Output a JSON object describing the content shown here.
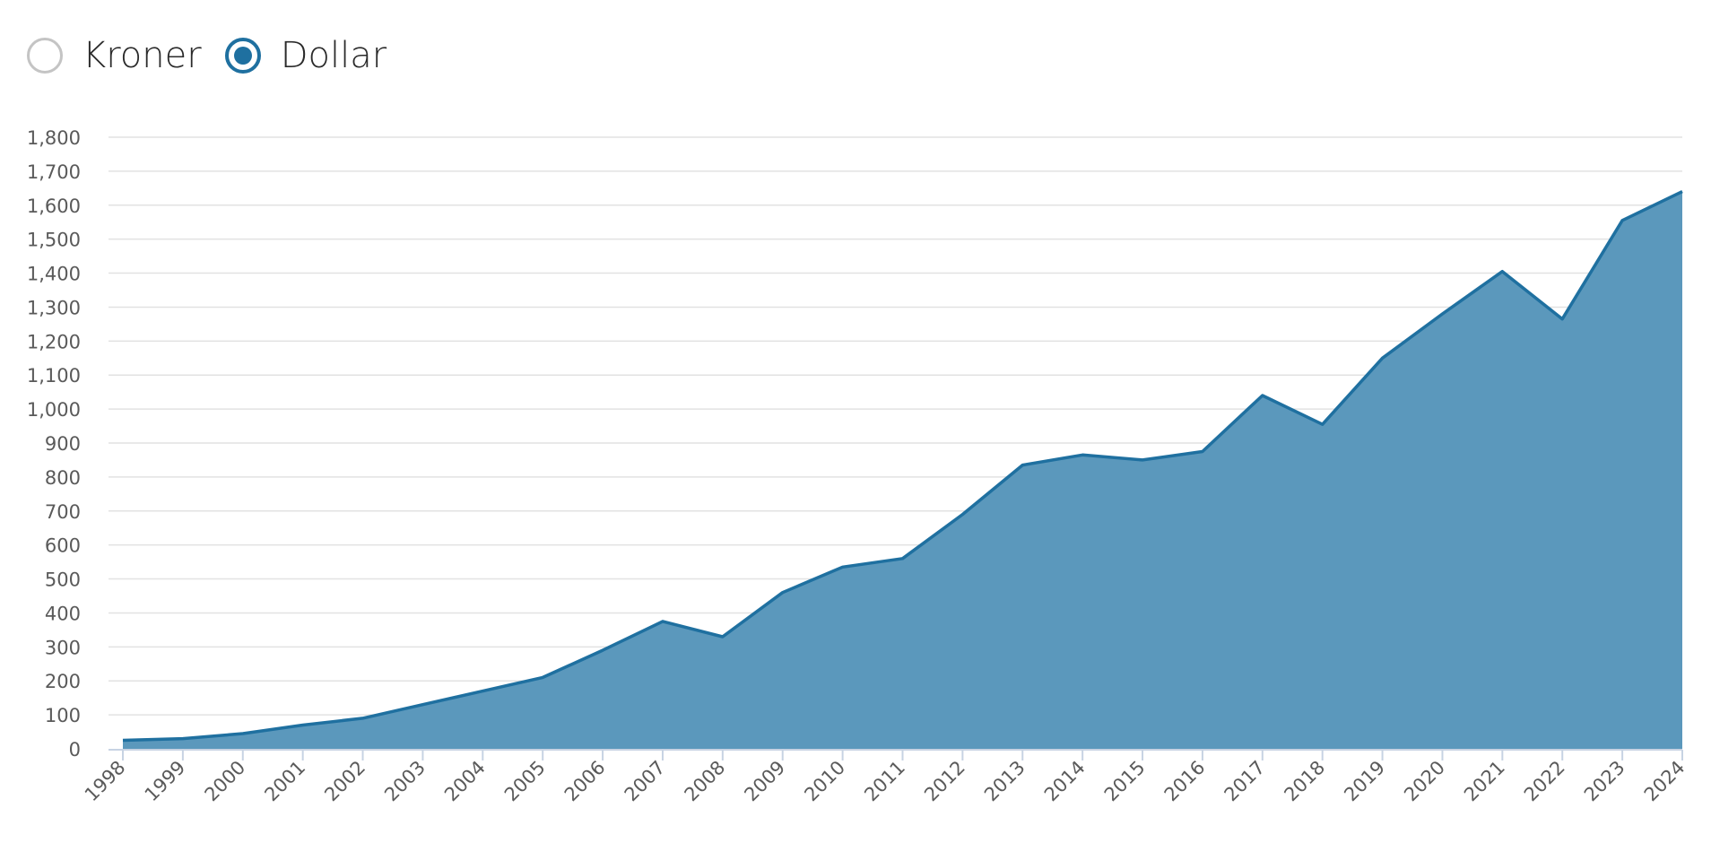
{
  "currency_toggle": {
    "options": [
      {
        "label": "Kroner",
        "selected": false
      },
      {
        "label": "Dollar",
        "selected": true
      }
    ]
  },
  "colors": {
    "accent": "#1f70a0",
    "area_fill": "#5b98bc",
    "grid": "#e2e2e2",
    "axis": "#c7d3e3",
    "tick_text": "#5a5a5a"
  },
  "chart_data": {
    "type": "area",
    "title": "",
    "xlabel": "",
    "ylabel": "",
    "ylim": [
      0,
      1800
    ],
    "yticks": [
      0,
      100,
      200,
      300,
      400,
      500,
      600,
      700,
      800,
      900,
      1000,
      1100,
      1200,
      1300,
      1400,
      1500,
      1600,
      1700,
      1800
    ],
    "ytick_labels": [
      "0",
      "100",
      "200",
      "300",
      "400",
      "500",
      "600",
      "700",
      "800",
      "900",
      "1,000",
      "1,100",
      "1,200",
      "1,300",
      "1,400",
      "1,500",
      "1,600",
      "1,700",
      "1,800"
    ],
    "grid": true,
    "categories": [
      "1998",
      "1999",
      "2000",
      "2001",
      "2002",
      "2003",
      "2004",
      "2005",
      "2006",
      "2007",
      "2008",
      "2009",
      "2010",
      "2011",
      "2012",
      "2013",
      "2014",
      "2015",
      "2016",
      "2017",
      "2018",
      "2019",
      "2020",
      "2021",
      "2022",
      "2023",
      "2024"
    ],
    "values": [
      25,
      30,
      45,
      70,
      90,
      130,
      170,
      210,
      290,
      375,
      330,
      460,
      535,
      560,
      690,
      835,
      865,
      850,
      875,
      1040,
      955,
      1150,
      1280,
      1405,
      1265,
      1555,
      1640
    ]
  }
}
